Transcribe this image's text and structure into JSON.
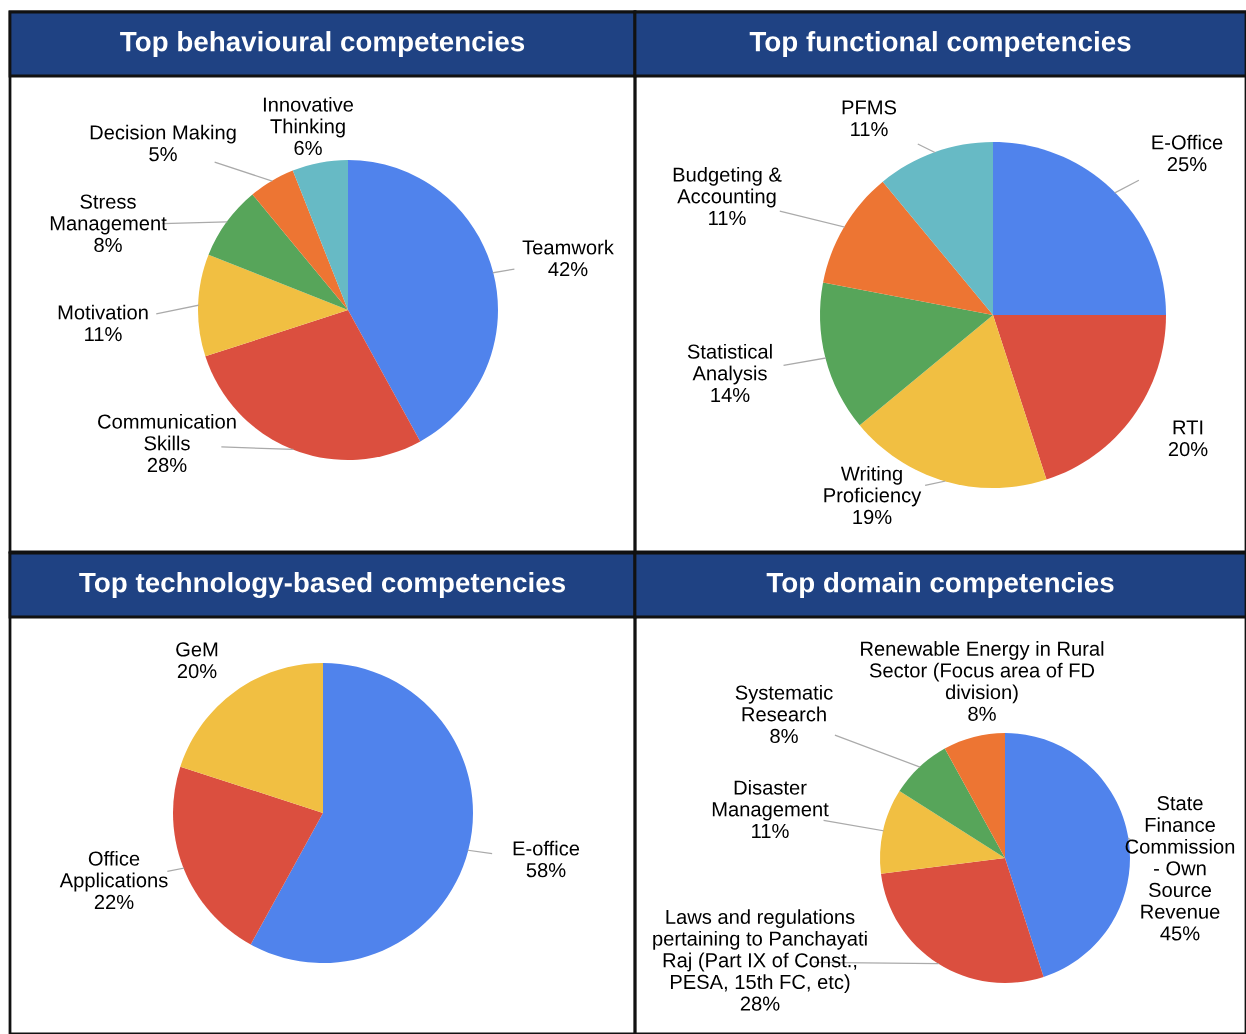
{
  "chart_data": [
    {
      "type": "pie",
      "title": "Top behavioural competencies",
      "categories": [
        "Teamwork",
        "Communication Skills",
        "Motivation",
        "Stress Management",
        "Decision Making",
        "Innovative Thinking"
      ],
      "values": [
        42,
        28,
        11,
        8,
        5,
        6
      ],
      "value_labels": [
        "42%",
        "28%",
        "11%",
        "8%",
        "5%",
        "6%"
      ],
      "colors": [
        "#5083ec",
        "#db4f3f",
        "#f1bf42",
        "#57a55a",
        "#ed7533",
        "#67bac5"
      ],
      "legend": false
    },
    {
      "type": "pie",
      "title": "Top functional competencies",
      "categories": [
        "E-Office",
        "RTI",
        "Writing Proficiency",
        "Statistical Analysis",
        "Budgeting & Accounting",
        "PFMS"
      ],
      "values": [
        25,
        20,
        19,
        14,
        11,
        11
      ],
      "value_labels": [
        "25%",
        "20%",
        "19%",
        "14%",
        "11%",
        "11%"
      ],
      "colors": [
        "#5083ec",
        "#db4f3f",
        "#f1bf42",
        "#57a55a",
        "#ed7533",
        "#67bac5"
      ],
      "legend": false
    },
    {
      "type": "pie",
      "title": "Top technology-based competencies",
      "categories": [
        "E-office",
        "Office Applications",
        "GeM"
      ],
      "values": [
        58,
        22,
        20
      ],
      "value_labels": [
        "58%",
        "22%",
        "20%"
      ],
      "colors": [
        "#5083ec",
        "#db4f3f",
        "#f1bf42"
      ],
      "legend": false
    },
    {
      "type": "pie",
      "title": "Top domain competencies",
      "categories": [
        "State Finance Commission - Own Source Revenue",
        "Laws and regulations pertaining to Panchayati Raj (Part IX of Const., PESA, 15th FC, etc)",
        "Disaster Management",
        "Systematic Research",
        "Renewable Energy in Rural Sector (Focus area of FD division)"
      ],
      "values": [
        45,
        28,
        11,
        8,
        8
      ],
      "value_labels": [
        "45%",
        "28%",
        "11%",
        "8%",
        "8%"
      ],
      "colors": [
        "#5083ec",
        "#db4f3f",
        "#f1bf42",
        "#57a55a",
        "#ed7533"
      ],
      "legend": false
    }
  ]
}
